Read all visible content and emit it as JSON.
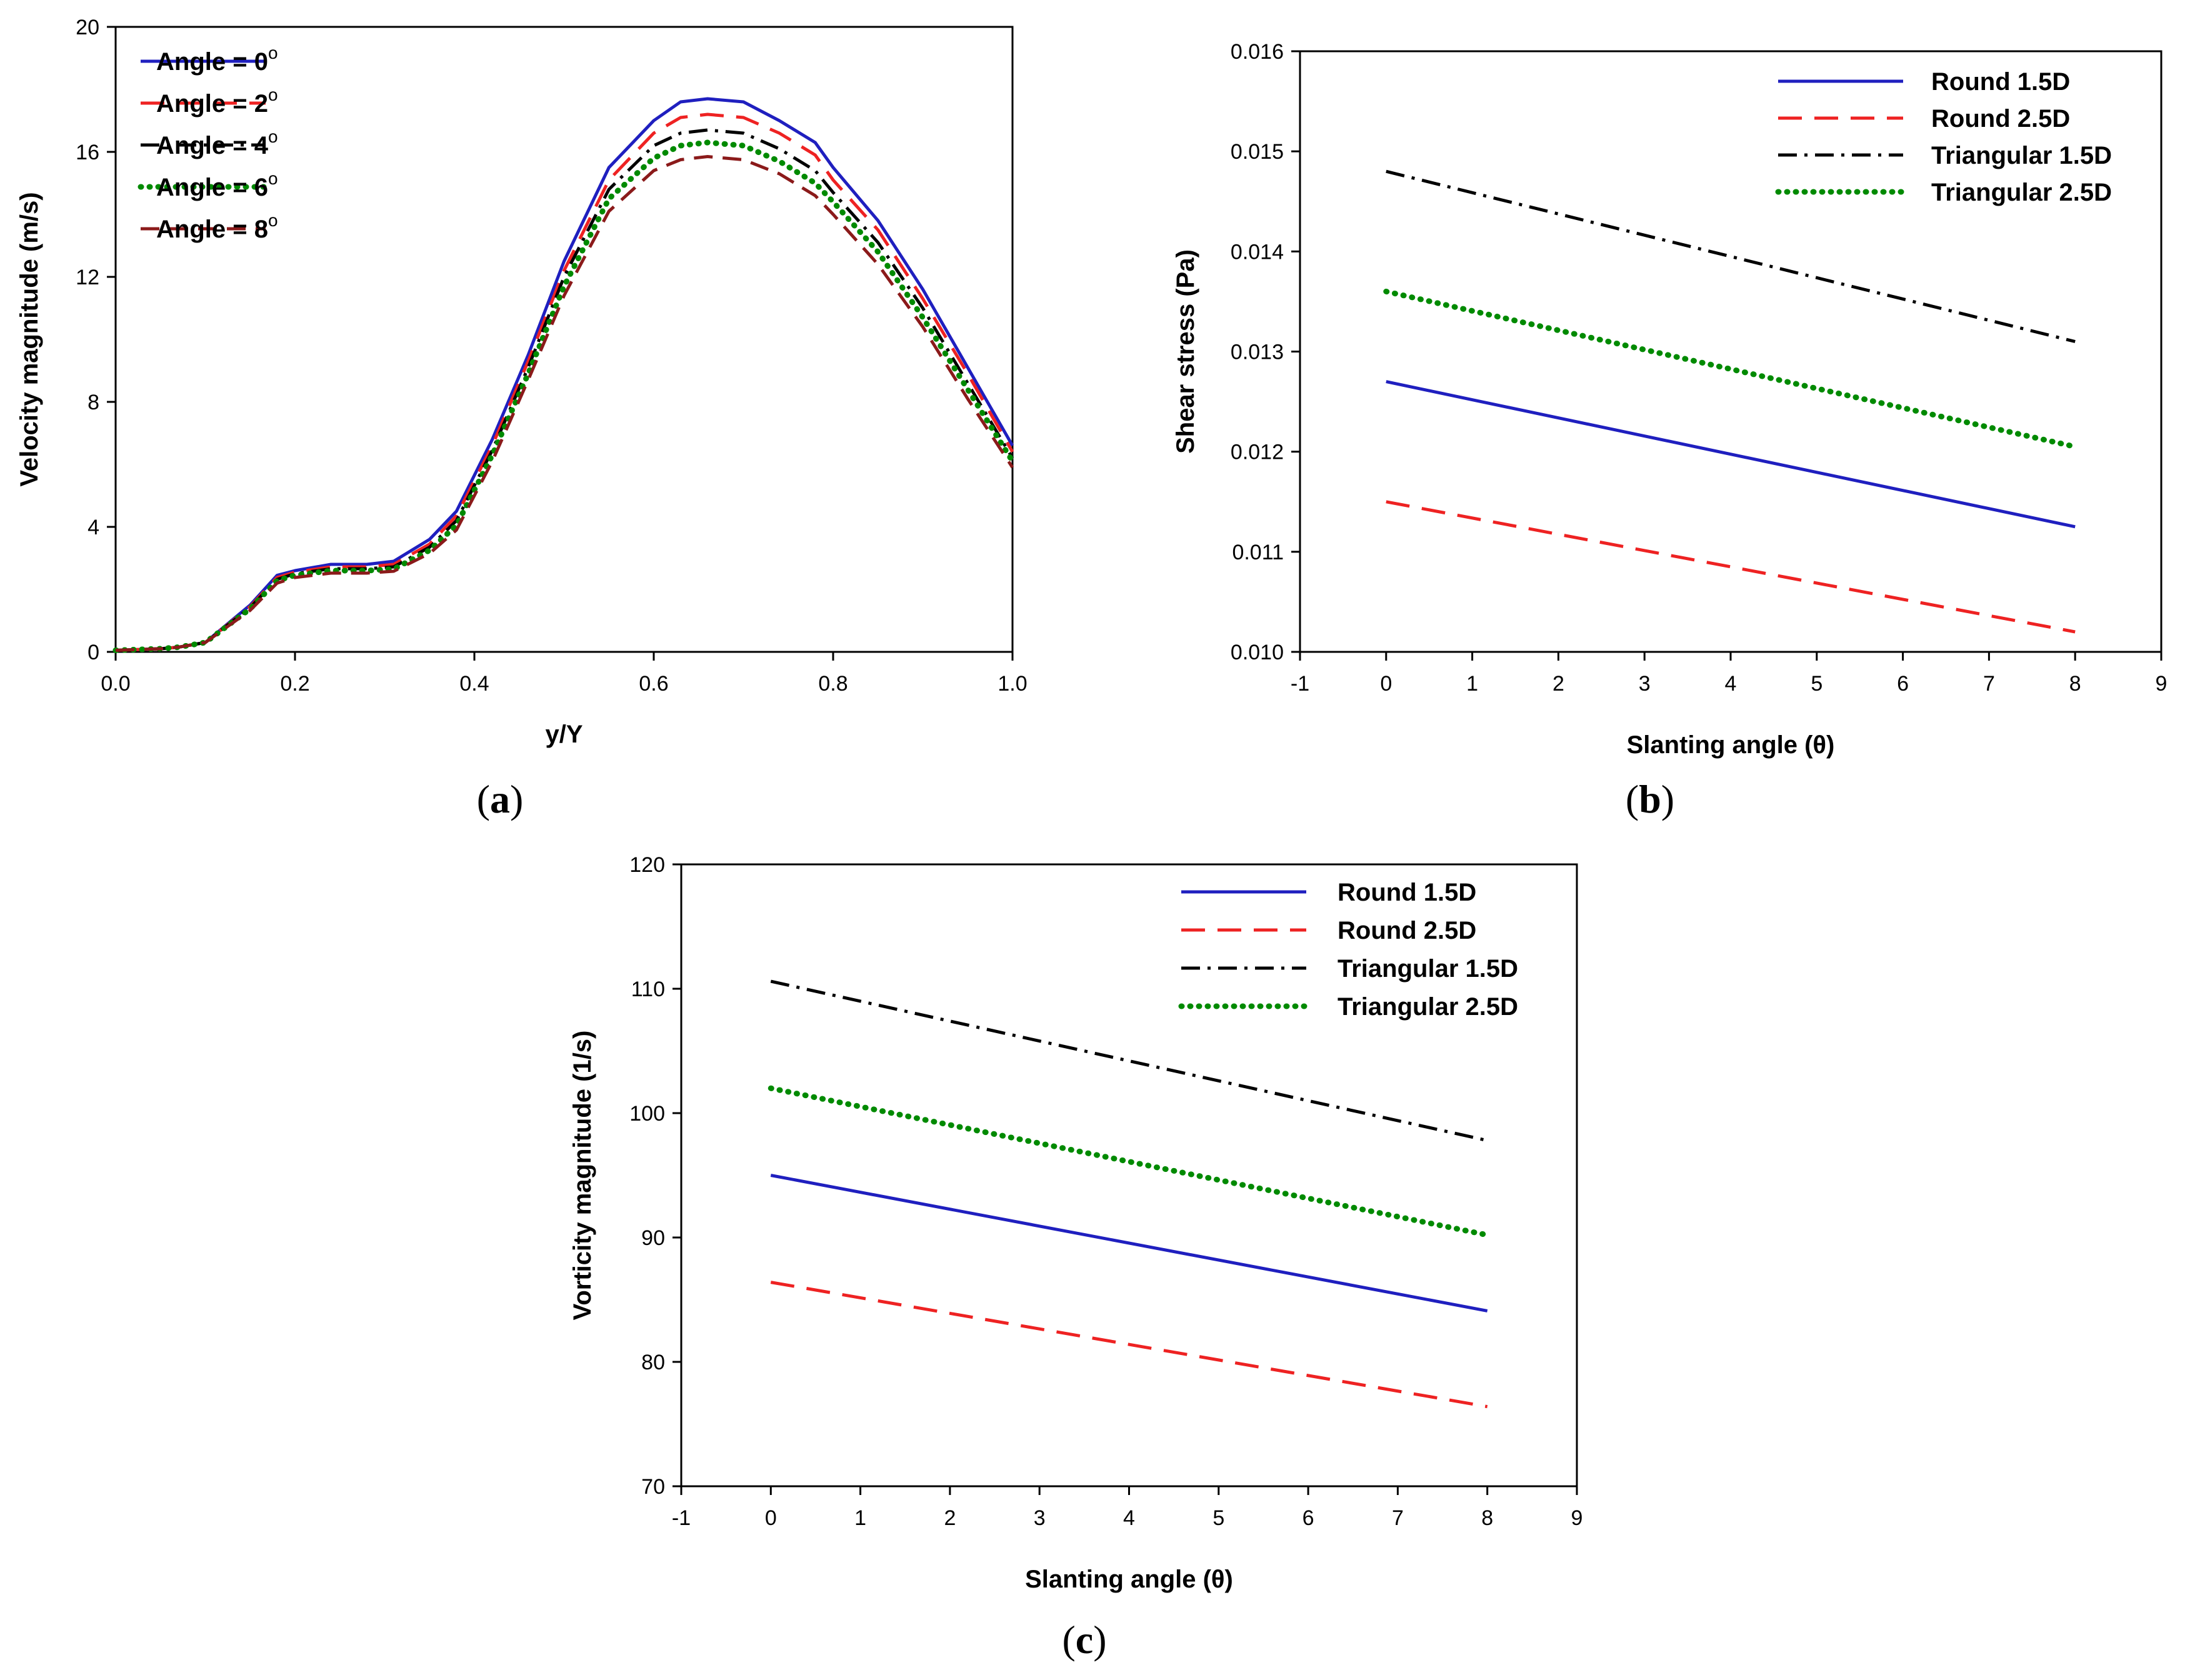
{
  "colors": {
    "blue": "#1f1fbf",
    "red": "#ee2222",
    "black": "#000000",
    "green": "#008a00",
    "darkred": "#8b1a1a"
  },
  "chart_data": [
    {
      "id": "a",
      "type": "line",
      "panel_label": "a",
      "title": "",
      "xlabel": "y/Y",
      "ylabel": "Velocity magnitude (m/s)",
      "xlim": [
        0.0,
        1.0
      ],
      "ylim": [
        0,
        20
      ],
      "xticks": [
        "0.0",
        "0.2",
        "0.4",
        "0.6",
        "0.8",
        "1.0"
      ],
      "yticks": [
        "0",
        "4",
        "8",
        "12",
        "16",
        "20"
      ],
      "legend_position": "top-left",
      "series": [
        {
          "name": "Angle = 0",
          "name_superscript": "o",
          "color": "#1f1fbf",
          "dash": "solid",
          "x": [
            0.0,
            0.05,
            0.07,
            0.1,
            0.15,
            0.18,
            0.2,
            0.24,
            0.28,
            0.31,
            0.35,
            0.38,
            0.42,
            0.46,
            0.5,
            0.55,
            0.6,
            0.63,
            0.66,
            0.7,
            0.74,
            0.78,
            0.8,
            0.85,
            0.9,
            0.95,
            1.0
          ],
          "y": [
            0.05,
            0.1,
            0.15,
            0.3,
            1.5,
            2.45,
            2.6,
            2.8,
            2.8,
            2.9,
            3.6,
            4.5,
            6.8,
            9.5,
            12.5,
            15.5,
            17.0,
            17.6,
            17.7,
            17.6,
            17.0,
            16.3,
            15.5,
            13.8,
            11.6,
            9.1,
            6.6
          ]
        },
        {
          "name": "Angle = 2",
          "name_superscript": "o",
          "color": "#ee2222",
          "dash": "long-dash",
          "x": [
            0.0,
            0.05,
            0.07,
            0.1,
            0.15,
            0.18,
            0.2,
            0.24,
            0.28,
            0.31,
            0.35,
            0.38,
            0.42,
            0.46,
            0.5,
            0.55,
            0.6,
            0.63,
            0.66,
            0.7,
            0.74,
            0.78,
            0.8,
            0.85,
            0.9,
            0.95,
            1.0
          ],
          "y": [
            0.05,
            0.1,
            0.15,
            0.3,
            1.45,
            2.38,
            2.55,
            2.72,
            2.72,
            2.8,
            3.45,
            4.35,
            6.6,
            9.3,
            12.2,
            15.1,
            16.6,
            17.1,
            17.2,
            17.1,
            16.6,
            15.9,
            15.1,
            13.5,
            11.3,
            8.9,
            6.4
          ]
        },
        {
          "name": "Angle = 4",
          "name_superscript": "o",
          "color": "#000000",
          "dash": "dash-dot",
          "x": [
            0.0,
            0.05,
            0.07,
            0.1,
            0.15,
            0.18,
            0.2,
            0.24,
            0.28,
            0.31,
            0.35,
            0.38,
            0.42,
            0.46,
            0.5,
            0.55,
            0.6,
            0.63,
            0.66,
            0.7,
            0.74,
            0.78,
            0.8,
            0.85,
            0.9,
            0.95,
            1.0
          ],
          "y": [
            0.05,
            0.1,
            0.15,
            0.3,
            1.42,
            2.32,
            2.5,
            2.66,
            2.66,
            2.72,
            3.35,
            4.2,
            6.45,
            9.1,
            12.0,
            14.8,
            16.2,
            16.6,
            16.7,
            16.6,
            16.1,
            15.4,
            14.7,
            13.1,
            11.0,
            8.6,
            6.2
          ]
        },
        {
          "name": "Angle = 6",
          "name_superscript": "o",
          "color": "#008a00",
          "dash": "dotted",
          "x": [
            0.0,
            0.05,
            0.07,
            0.1,
            0.15,
            0.18,
            0.2,
            0.24,
            0.28,
            0.31,
            0.35,
            0.38,
            0.42,
            0.46,
            0.5,
            0.55,
            0.6,
            0.63,
            0.66,
            0.7,
            0.74,
            0.78,
            0.8,
            0.85,
            0.9,
            0.95,
            1.0
          ],
          "y": [
            0.05,
            0.1,
            0.15,
            0.3,
            1.38,
            2.28,
            2.45,
            2.6,
            2.6,
            2.65,
            3.25,
            4.05,
            6.3,
            8.9,
            11.7,
            14.5,
            15.8,
            16.2,
            16.3,
            16.2,
            15.7,
            15.0,
            14.4,
            12.8,
            10.7,
            8.4,
            6.1
          ]
        },
        {
          "name": "Angle = 8",
          "name_superscript": "o",
          "color": "#8b1a1a",
          "dash": "dashed",
          "x": [
            0.0,
            0.05,
            0.07,
            0.1,
            0.15,
            0.18,
            0.2,
            0.24,
            0.28,
            0.31,
            0.35,
            0.38,
            0.42,
            0.46,
            0.5,
            0.55,
            0.6,
            0.63,
            0.66,
            0.7,
            0.74,
            0.78,
            0.8,
            0.85,
            0.9,
            0.95,
            1.0
          ],
          "y": [
            0.05,
            0.1,
            0.15,
            0.3,
            1.33,
            2.2,
            2.38,
            2.52,
            2.52,
            2.58,
            3.15,
            3.9,
            6.1,
            8.7,
            11.4,
            14.1,
            15.4,
            15.75,
            15.85,
            15.75,
            15.3,
            14.6,
            14.0,
            12.4,
            10.4,
            8.1,
            5.9
          ]
        }
      ]
    },
    {
      "id": "b",
      "type": "line",
      "panel_label": "b",
      "title": "",
      "xlabel": "Slanting angle (θ)",
      "ylabel": "Shear stress (Pa)",
      "xlim": [
        -1,
        9
      ],
      "ylim": [
        0.01,
        0.016
      ],
      "xticks": [
        "-1",
        "0",
        "1",
        "2",
        "3",
        "4",
        "5",
        "6",
        "7",
        "8",
        "9"
      ],
      "yticks": [
        "0.010",
        "0.011",
        "0.012",
        "0.013",
        "0.014",
        "0.015",
        "0.016"
      ],
      "legend_position": "top-right",
      "series": [
        {
          "name": "Round 1.5D",
          "color": "#1f1fbf",
          "dash": "solid",
          "x": [
            0,
            8
          ],
          "y": [
            0.0127,
            0.01125
          ]
        },
        {
          "name": "Round 2.5D",
          "color": "#ee2222",
          "dash": "long-dash",
          "x": [
            0,
            8
          ],
          "y": [
            0.0115,
            0.0102
          ]
        },
        {
          "name": "Triangular 1.5D",
          "color": "#000000",
          "dash": "dash-dot",
          "x": [
            0,
            8
          ],
          "y": [
            0.0148,
            0.0131
          ]
        },
        {
          "name": "Triangular 2.5D",
          "color": "#008a00",
          "dash": "dotted",
          "x": [
            0,
            8
          ],
          "y": [
            0.0136,
            0.01205
          ]
        }
      ]
    },
    {
      "id": "c",
      "type": "line",
      "panel_label": "c",
      "title": "",
      "xlabel": "Slanting angle (θ)",
      "ylabel": "Vorticity magnitude (1/s)",
      "xlim": [
        -1,
        9
      ],
      "ylim": [
        70,
        120
      ],
      "xticks": [
        "-1",
        "0",
        "1",
        "2",
        "3",
        "4",
        "5",
        "6",
        "7",
        "8",
        "9"
      ],
      "yticks": [
        "70",
        "80",
        "90",
        "100",
        "110",
        "120"
      ],
      "legend_position": "top-right",
      "series": [
        {
          "name": "Round 1.5D",
          "color": "#1f1fbf",
          "dash": "solid",
          "x": [
            0,
            8
          ],
          "y": [
            95.0,
            84.1
          ]
        },
        {
          "name": "Round 2.5D",
          "color": "#ee2222",
          "dash": "long-dash",
          "x": [
            0,
            8
          ],
          "y": [
            86.4,
            76.4
          ]
        },
        {
          "name": "Triangular 1.5D",
          "color": "#000000",
          "dash": "dash-dot",
          "x": [
            0,
            8
          ],
          "y": [
            110.6,
            97.8
          ]
        },
        {
          "name": "Triangular 2.5D",
          "color": "#008a00",
          "dash": "dotted",
          "x": [
            0,
            8
          ],
          "y": [
            102.0,
            90.2
          ]
        }
      ]
    }
  ]
}
